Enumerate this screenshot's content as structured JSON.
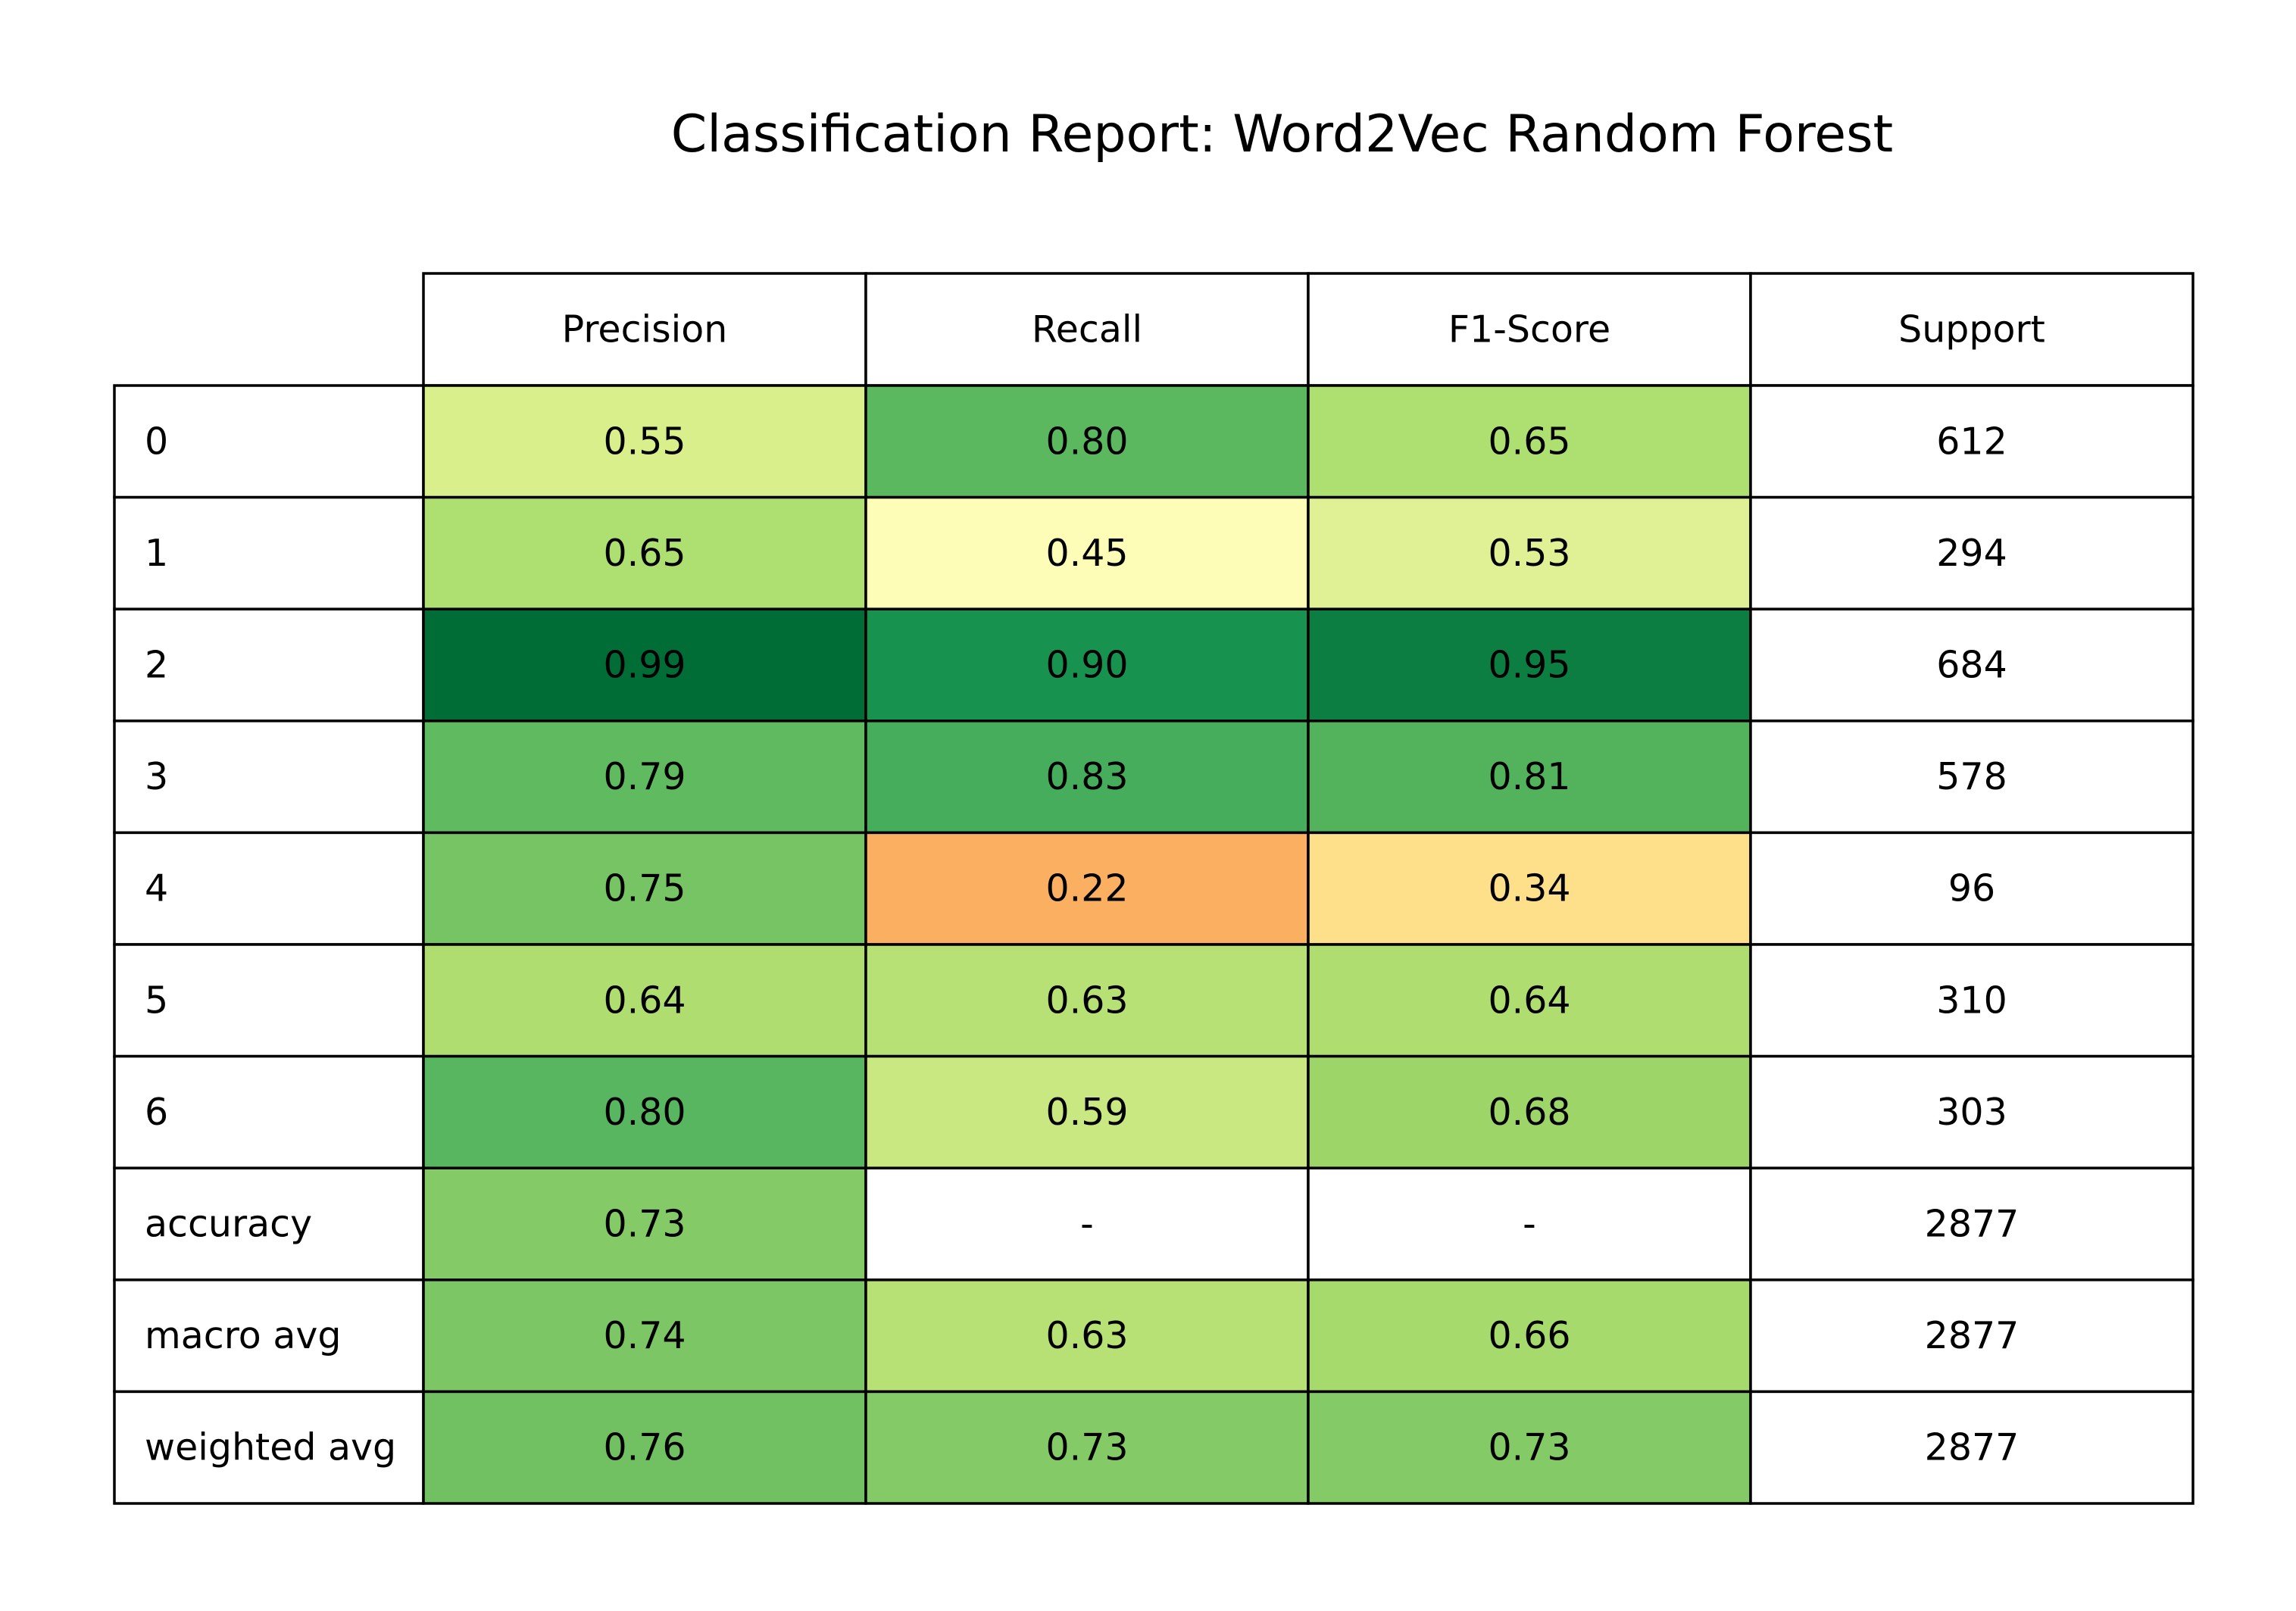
{
  "chart_data": {
    "type": "table",
    "title": "Classification Report: Word2Vec Random Forest",
    "columns": [
      "Precision",
      "Recall",
      "F1-Score",
      "Support"
    ],
    "rows": [
      {
        "label": "0",
        "values": [
          "0.55",
          "0.80",
          "0.65",
          "612"
        ],
        "colors": [
          "#d9ef8b",
          "#5cb85f",
          "#addf71",
          null
        ]
      },
      {
        "label": "1",
        "values": [
          "0.65",
          "0.45",
          "0.53",
          "294"
        ],
        "colors": [
          "#addf71",
          "#fdfdb8",
          "#e0f195",
          null
        ]
      },
      {
        "label": "2",
        "values": [
          "0.99",
          "0.90",
          "0.95",
          "684"
        ],
        "colors": [
          "#006d37",
          "#18924f",
          "#0c7e42",
          null
        ]
      },
      {
        "label": "3",
        "values": [
          "0.79",
          "0.83",
          "0.81",
          "578"
        ],
        "colors": [
          "#60ba5f",
          "#45ad5b",
          "#53b35d",
          null
        ]
      },
      {
        "label": "4",
        "values": [
          "0.75",
          "0.22",
          "0.34",
          "96"
        ],
        "colors": [
          "#77c464",
          "#fbaf61",
          "#fee08b",
          null
        ]
      },
      {
        "label": "5",
        "values": [
          "0.64",
          "0.63",
          "0.64",
          "310"
        ],
        "colors": [
          "#b0dd70",
          "#b7e075",
          "#b0dd70",
          null
        ]
      },
      {
        "label": "6",
        "values": [
          "0.80",
          "0.59",
          "0.68",
          "303"
        ],
        "colors": [
          "#57b65f",
          "#c9e881",
          "#9dd569",
          null
        ]
      },
      {
        "label": "accuracy",
        "values": [
          "0.73",
          "-",
          "-",
          "2877"
        ],
        "colors": [
          "#84ca66",
          null,
          null,
          null
        ]
      },
      {
        "label": "macro avg",
        "values": [
          "0.74",
          "0.63",
          "0.66",
          "2877"
        ],
        "colors": [
          "#7cc665",
          "#b7e075",
          "#a7da6d",
          null
        ]
      },
      {
        "label": "weighted avg",
        "values": [
          "0.76",
          "0.73",
          "0.73",
          "2877"
        ],
        "colors": [
          "#71c162",
          "#84ca66",
          "#84ca66",
          null
        ]
      }
    ],
    "colormap": "RdYlGn"
  }
}
